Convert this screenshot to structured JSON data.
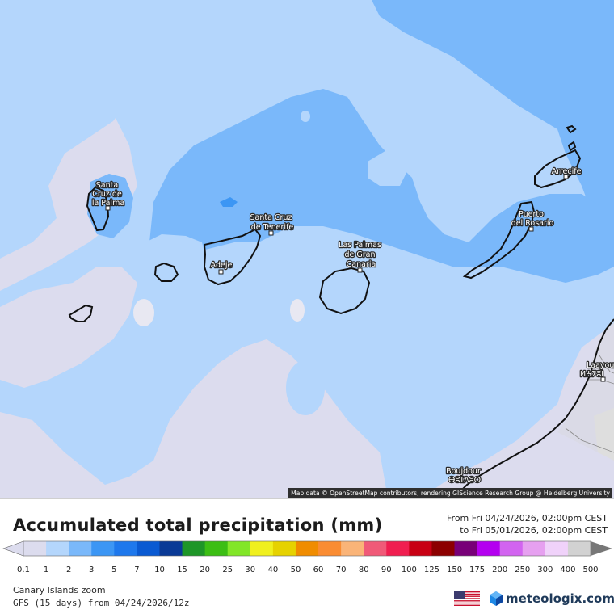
{
  "map": {
    "attribution": "Map data © OpenStreetMap contributors, rendering GIScience Research Group @ Heidelberg University",
    "cities": [
      {
        "id": "santa-cruz-de-la-palma",
        "lines": [
          "Santa",
          "Cruz de",
          "la Palma"
        ]
      },
      {
        "id": "santa-cruz-de-tenerife",
        "lines": [
          "Santa Cruz",
          "de Tenerife"
        ]
      },
      {
        "id": "adeje",
        "lines": [
          "Adeje"
        ]
      },
      {
        "id": "las-palmas-de-gran-canaria",
        "lines": [
          "Las Palmas",
          "de Gran",
          "Canaria"
        ]
      },
      {
        "id": "puerto-del-rosario",
        "lines": [
          "Puerto",
          "del Rosario"
        ]
      },
      {
        "id": "arrecife",
        "lines": [
          "Arrecife"
        ]
      },
      {
        "id": "laayoune",
        "lines": [
          "Laayou",
          "ⵍⵄⵢⵓⵏ"
        ]
      },
      {
        "id": "boujdour",
        "lines": [
          "Boujdour",
          "ⴱⵓⵊⴷⵓⵔ"
        ]
      }
    ],
    "colors": {
      "lightest": "#dcdcee",
      "band_0_1": "#c8e0f6",
      "band_1": "#b4d6fc",
      "band_2": "#7ab8fa",
      "land_grey": "#c0c0c0",
      "coast": "#111111"
    }
  },
  "legend": {
    "title": "Accumulated total precipitation (mm)",
    "period_from": "From Fri 04/24/2026, 02:00pm CEST",
    "period_to": "to Fri 05/01/2026, 02:00pm CEST",
    "ticks": [
      "0.1",
      "1",
      "2",
      "3",
      "5",
      "7",
      "10",
      "15",
      "20",
      "25",
      "30",
      "40",
      "50",
      "60",
      "70",
      "80",
      "90",
      "100",
      "125",
      "150",
      "175",
      "200",
      "250",
      "300",
      "400",
      "500"
    ],
    "colors": [
      "#dcdcee",
      "#b4d6fc",
      "#7ab8fa",
      "#3c96f4",
      "#1e78ec",
      "#0a5ad2",
      "#0a3a96",
      "#1e9628",
      "#3cbe14",
      "#82e628",
      "#f0f01e",
      "#e6d200",
      "#f08c00",
      "#fa8c32",
      "#fab478",
      "#f05a78",
      "#f01e50",
      "#c80014",
      "#8c0000",
      "#780078",
      "#b400f0",
      "#d264f0",
      "#e6a0f0",
      "#f0d2fa",
      "#d2d2d2"
    ]
  },
  "footer": {
    "region": "Canary Islands zoom",
    "model": "GFS (15 days) from  04/24/2026/12z",
    "brand": "meteologix.com",
    "flag_icon": "us-flag-icon"
  }
}
